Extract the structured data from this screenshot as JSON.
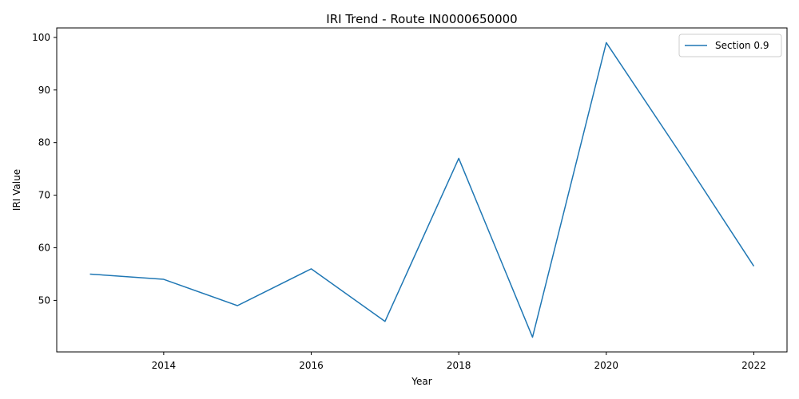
{
  "chart_data": {
    "type": "line",
    "title": "IRI Trend - Route IN0000650000",
    "xlabel": "Year",
    "ylabel": "IRI Value",
    "x": [
      2013,
      2014,
      2015,
      2016,
      2017,
      2018,
      2019,
      2020,
      2021,
      2022
    ],
    "series": [
      {
        "name": "Section 0.9",
        "color": "#1f77b4",
        "values": [
          55,
          54,
          49,
          56,
          46,
          77,
          43,
          99,
          78,
          56.5
        ]
      }
    ],
    "xlim": [
      2012.55,
      2022.45
    ],
    "ylim": [
      40.2,
      101.8
    ],
    "xticks": [
      2014,
      2016,
      2018,
      2020,
      2022
    ],
    "yticks": [
      50,
      60,
      70,
      80,
      90,
      100
    ],
    "grid": false,
    "legend_position": "top-right"
  }
}
